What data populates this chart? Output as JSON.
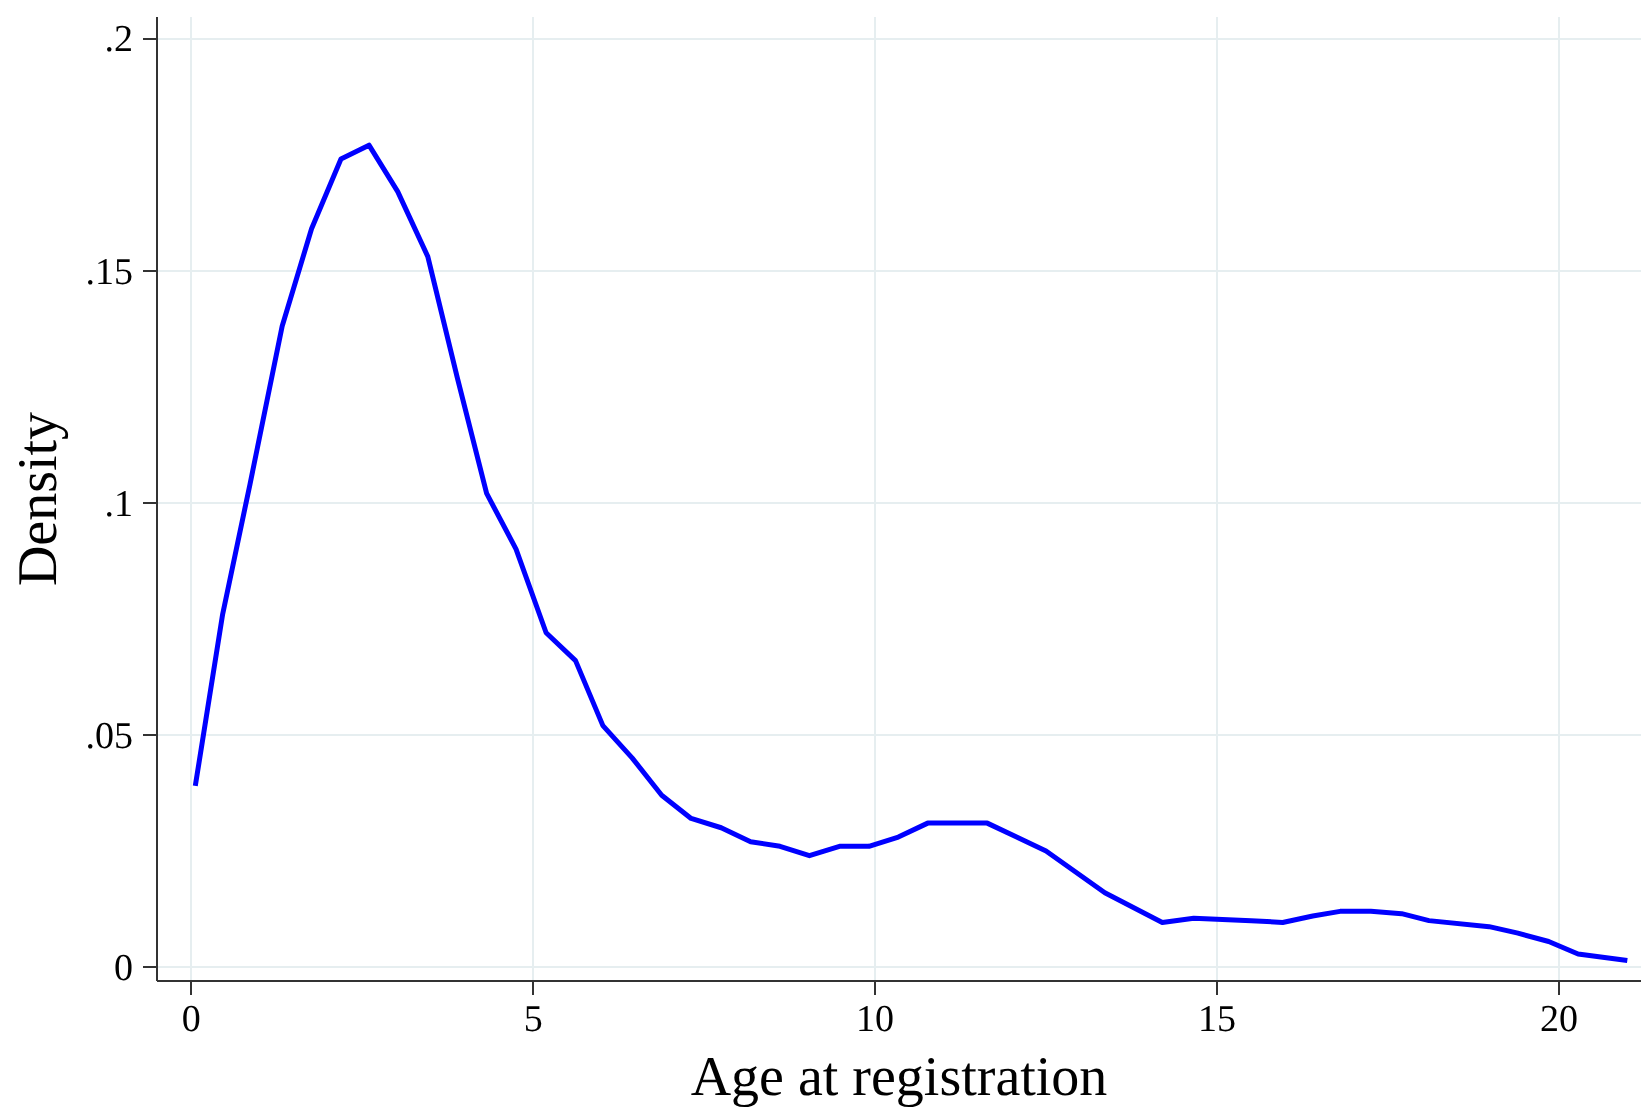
{
  "chart_data": {
    "type": "line",
    "xlabel": "Age at registration",
    "ylabel": "Density",
    "x": [
      0.06,
      0.46,
      0.86,
      1.33,
      1.76,
      2.19,
      2.6,
      3.02,
      3.46,
      3.89,
      4.32,
      4.75,
      5.19,
      5.62,
      6.02,
      6.45,
      6.88,
      7.31,
      7.75,
      8.18,
      8.61,
      9.04,
      9.48,
      9.91,
      10.34,
      10.77,
      11.64,
      12.07,
      12.5,
      13.36,
      14.2,
      14.66,
      15.5,
      15.96,
      16.4,
      16.8,
      17.25,
      17.7,
      18.1,
      18.98,
      19.4,
      19.85,
      20.28,
      21.0
    ],
    "series": [
      {
        "color": "#0000ff",
        "values": [
          0.039,
          0.076,
          0.104,
          0.138,
          0.159,
          0.174,
          0.177,
          0.167,
          0.153,
          0.127,
          0.102,
          0.09,
          0.072,
          0.066,
          0.052,
          0.045,
          0.037,
          0.032,
          0.03,
          0.027,
          0.026,
          0.024,
          0.026,
          0.026,
          0.028,
          0.031,
          0.031,
          0.028,
          0.025,
          0.016,
          0.0096,
          0.0105,
          0.01,
          0.0096,
          0.011,
          0.012,
          0.012,
          0.0115,
          0.01,
          0.0087,
          0.0073,
          0.0055,
          0.0028,
          0.0014
        ]
      }
    ],
    "xlim": [
      -0.5,
      21.2
    ],
    "ylim": [
      -0.003,
      0.2046
    ],
    "xticks": [
      0,
      5,
      10,
      15,
      20
    ],
    "yticks": [
      {
        "value": 0,
        "label": "0"
      },
      {
        "value": 0.05,
        "label": ".05"
      },
      {
        "value": 0.1,
        "label": ".1"
      },
      {
        "value": 0.15,
        "label": ".15"
      },
      {
        "value": 0.2,
        "label": ".2"
      }
    ],
    "grid": true,
    "line_style": "solid",
    "marker": "none"
  }
}
